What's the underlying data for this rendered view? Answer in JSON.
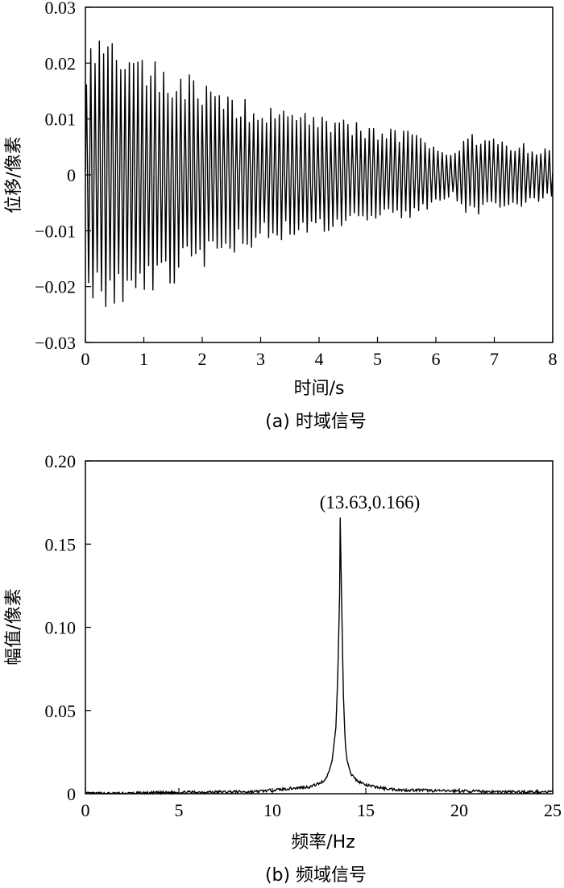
{
  "chart_data": [
    {
      "type": "line",
      "caption": "(a) 时域信号",
      "xlabel": "时间/s",
      "ylabel": "位移/像素",
      "xlim": [
        0,
        8
      ],
      "ylim": [
        -0.03,
        0.03
      ],
      "x_ticks": [
        "0",
        "1",
        "2",
        "3",
        "4",
        "5",
        "6",
        "7",
        "8"
      ],
      "y_ticks": [
        "−0.03",
        "−0.02",
        "−0.01",
        "0",
        "0.01",
        "0.02",
        "0.03"
      ],
      "grid": false,
      "signal": {
        "frequency_hz": 13.63,
        "duration_s": 8,
        "envelope": {
          "t": [
            0,
            0.1,
            0.5,
            1,
            1.5,
            2,
            2.5,
            3,
            3.5,
            4,
            4.5,
            5,
            5.5,
            6,
            6.3,
            6.5,
            7,
            7.5,
            8
          ],
          "amplitude": [
            0.019,
            0.024,
            0.023,
            0.021,
            0.019,
            0.016,
            0.014,
            0.012,
            0.011,
            0.011,
            0.0095,
            0.0085,
            0.008,
            0.0055,
            0.004,
            0.0075,
            0.0065,
            0.0055,
            0.0045
          ]
        }
      }
    },
    {
      "type": "line",
      "caption": "(b) 频域信号",
      "xlabel": "频率/Hz",
      "ylabel": "幅值/像素",
      "xlim": [
        0,
        25
      ],
      "ylim": [
        0,
        0.2
      ],
      "x_ticks": [
        "0",
        "5",
        "10",
        "15",
        "20",
        "25"
      ],
      "y_ticks": [
        "0",
        "0.05",
        "0.10",
        "0.15",
        "0.20"
      ],
      "grid": false,
      "annotation": "(13.63,0.166)",
      "peak": {
        "x": 13.63,
        "y": 0.166
      },
      "spectrum": {
        "x": [
          0,
          2,
          4,
          6,
          8,
          9,
          10,
          11,
          12,
          12.5,
          12.8,
          13.0,
          13.2,
          13.4,
          13.5,
          13.6,
          13.63,
          13.7,
          13.8,
          13.9,
          14.0,
          14.2,
          14.5,
          15,
          15.5,
          16,
          17,
          18,
          19,
          20,
          22,
          25
        ],
        "y": [
          0.0,
          0.0,
          0.0005,
          0.0008,
          0.001,
          0.001,
          0.002,
          0.003,
          0.004,
          0.006,
          0.008,
          0.012,
          0.02,
          0.04,
          0.07,
          0.12,
          0.166,
          0.12,
          0.06,
          0.03,
          0.02,
          0.012,
          0.008,
          0.005,
          0.004,
          0.003,
          0.002,
          0.002,
          0.0015,
          0.0015,
          0.001,
          0.001
        ]
      }
    }
  ]
}
